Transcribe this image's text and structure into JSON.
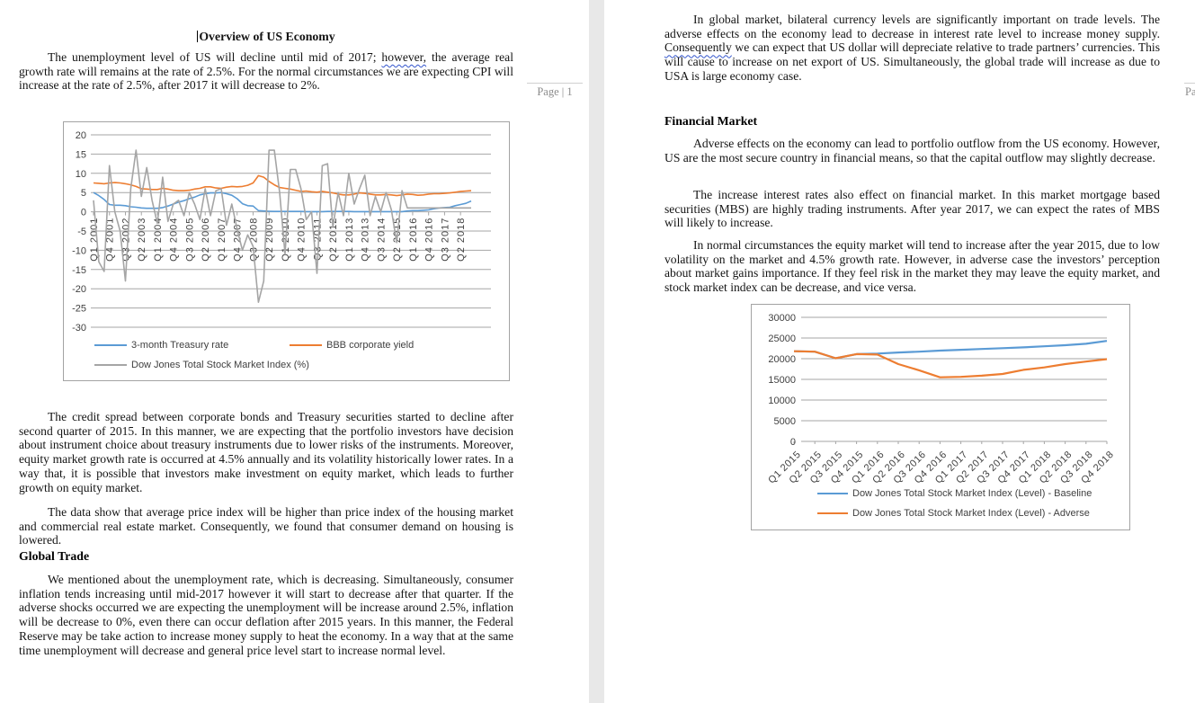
{
  "document": {
    "page1": {
      "title": "Overview of US Economy",
      "paragraph1": {
        "pre": "The unemployment level of US will decline until mid of 2017; ",
        "marked": "however,",
        "post": " the average real growth rate will remains at the rate of 2.5%. For the normal circumstances we are expecting CPI will increase at the rate of 2.5%, after 2017 it will decrease to 2%."
      },
      "paragraph2": "The credit spread between corporate bonds and Treasury securities started to decline after second quarter of 2015. In this manner, we are expecting that the portfolio investors have decision about instrument choice about treasury instruments due to lower risks of the instruments. Moreover, equity market growth rate is occurred at 4.5% annually and its volatility historically lower rates. In a way that, it is possible that investors make investment on equity market, which leads to further growth on equity market.",
      "paragraph3": "The data show that average price index will be higher than price index of the housing market and commercial real estate market. Consequently, we found that consumer demand on housing is lowered.",
      "heading_global_trade": "Global Trade",
      "paragraph4": "We mentioned about the unemployment rate, which is decreasing. Simultaneously, consumer inflation tends increasing until mid-2017 however it will start to decrease after that quarter. If the adverse shocks occurred we are expecting the unemployment will be increase around 2.5%, inflation will be decrease to 0%, even there can occur deflation after 2015 years. In this manner, the Federal Reserve may be take action to increase money supply to heat the economy. In a way that at the same time unemployment will decrease and general price level start to increase normal level.",
      "footer": "Page | 1"
    },
    "page2": {
      "paragraph1": {
        "pre": "In global market, bilateral currency levels are significantly important on trade levels. The adverse effects on the economy lead to decrease in interest rate level to increase money supply. ",
        "marked": "Consequently",
        "post": " we can expect that US dollar will depreciate relative to trade partners’ currencies. This will cause to increase on net export of US. Simultaneously, the global trade will increase as due to USA is large economy case."
      },
      "heading_financial_market": "Financial Market",
      "paragraph2": "Adverse effects on the economy can lead to portfolio outflow from the US economy. However, US are the most secure country in financial means, so that the capital outflow may slightly decrease.",
      "paragraph3": "The increase interest rates also effect on financial market. In this market mortgage based securities (MBS) are highly trading instruments. After year 2017, we can expect the rates of MBS will likely to increase.",
      "paragraph4": "In normal circumstances the equity market will tend to increase after the year 2015, due to low volatility on the market and 4.5% growth rate. However, in adverse case the investors’ perception about market gains importance. If they feel risk in the market they may leave the equity market, and stock market index can be decrease, and vice versa.",
      "footer_partial": "Pa"
    }
  },
  "chart_data": [
    {
      "type": "line",
      "title": "",
      "ylim": [
        -30,
        20
      ],
      "ystep": 5,
      "grid": true,
      "legend_position": "bottom",
      "tick_every": 3,
      "tick_labels": [
        "Q1 2001",
        "Q4 2001",
        "Q3 2002",
        "Q2 2003",
        "Q1 2004",
        "Q4 2004",
        "Q3 2005",
        "Q2 2006",
        "Q1 2007",
        "Q4 2007",
        "Q3 2008",
        "Q2 2009",
        "Q1 2010",
        "Q4 2010",
        "Q3 2011",
        "Q2 2012",
        "Q1 2013",
        "Q4 2013",
        "Q3 2014",
        "Q2 2015",
        "Q1 2016",
        "Q4 2016",
        "Q3 2017",
        "Q2 2018"
      ],
      "series": [
        {
          "name": "3-month Treasury rate",
          "color": "#5B9BD5",
          "values": [
            5.0,
            4.2,
            3.2,
            1.9,
            1.7,
            1.7,
            1.6,
            1.3,
            1.2,
            1.0,
            0.9,
            0.9,
            0.9,
            1.1,
            1.5,
            2.0,
            2.5,
            2.9,
            3.4,
            3.8,
            4.4,
            4.7,
            4.9,
            4.9,
            5.0,
            4.7,
            4.3,
            3.4,
            2.1,
            1.6,
            1.5,
            0.3,
            0.2,
            0.15,
            0.1,
            0.1,
            0.1,
            0.1,
            0.1,
            0.1,
            0.05,
            0.05,
            0.05,
            0.05,
            0.1,
            0.1,
            0.1,
            0.1,
            0.1,
            0.05,
            0.05,
            0.05,
            0.05,
            0.05,
            0.05,
            0.05,
            0.05,
            0.05,
            0.05,
            0.2,
            0.3,
            0.3,
            0.4,
            0.5,
            0.8,
            1.0,
            1.1,
            1.2,
            1.6,
            1.9,
            2.2,
            2.8
          ]
        },
        {
          "name": "BBB corporate yield",
          "color": "#ED7D31",
          "values": [
            7.5,
            7.4,
            7.3,
            7.5,
            7.6,
            7.5,
            7.3,
            7.0,
            6.6,
            6.0,
            5.9,
            5.8,
            5.8,
            6.1,
            5.9,
            5.6,
            5.5,
            5.5,
            5.6,
            5.9,
            6.1,
            6.5,
            6.5,
            6.2,
            6.1,
            6.4,
            6.6,
            6.5,
            6.6,
            6.9,
            7.5,
            9.4,
            9.0,
            7.9,
            7.0,
            6.3,
            6.1,
            5.9,
            5.6,
            5.3,
            5.4,
            5.2,
            5.1,
            5.3,
            5.1,
            4.9,
            4.6,
            4.4,
            4.4,
            4.6,
            4.9,
            4.8,
            4.6,
            4.4,
            4.4,
            4.5,
            4.4,
            4.2,
            4.4,
            4.6,
            4.5,
            4.3,
            4.4,
            4.6,
            4.7,
            4.7,
            4.8,
            4.9,
            5.1,
            5.3,
            5.4,
            5.5
          ]
        },
        {
          "name": "Dow Jones Total Stock Market Index (%)",
          "color": "#A5A5A5",
          "values": [
            3,
            -13,
            -15.5,
            12,
            0,
            -5,
            -18,
            6,
            16,
            4,
            11.5,
            3,
            -3,
            9,
            -2.5,
            2,
            3,
            -1,
            5,
            2,
            -2,
            6,
            -1,
            5.5,
            6,
            -3.5,
            2,
            -4.5,
            -10,
            -6,
            -9,
            -23.5,
            -18,
            16,
            16,
            5,
            -11,
            11,
            11,
            6,
            -2,
            0,
            -16,
            12,
            12.5,
            -4,
            5,
            -1,
            10,
            2,
            6,
            9.5,
            -1,
            4,
            0,
            5,
            0.5,
            -8,
            5.5,
            1,
            1,
            1,
            1,
            1,
            1,
            1,
            1,
            1,
            1,
            1,
            1,
            1
          ]
        }
      ]
    },
    {
      "type": "line",
      "title": "",
      "ylim": [
        0,
        30000
      ],
      "ystep": 5000,
      "grid": true,
      "legend_position": "bottom",
      "categories": [
        "Q1 2015",
        "Q2 2015",
        "Q3 2015",
        "Q4 2015",
        "Q1 2016",
        "Q2 2016",
        "Q3 2016",
        "Q4 2016",
        "Q1 2017",
        "Q2 2017",
        "Q3 2017",
        "Q4 2017",
        "Q1 2018",
        "Q2 2018",
        "Q3 2018",
        "Q4 2018"
      ],
      "series": [
        {
          "name": "Dow Jones Total Stock Market Index (Level) - Baseline",
          "color": "#5B9BD5",
          "values": [
            21800,
            21700,
            20100,
            21100,
            21250,
            21500,
            21700,
            21950,
            22150,
            22350,
            22550,
            22750,
            23000,
            23250,
            23600,
            24300
          ]
        },
        {
          "name": "Dow Jones Total Stock Market Index (Level) - Adverse",
          "color": "#ED7D31",
          "values": [
            21800,
            21700,
            20100,
            21100,
            21000,
            18700,
            17200,
            15500,
            15600,
            15900,
            16300,
            17300,
            17900,
            18700,
            19300,
            19900
          ]
        }
      ]
    }
  ],
  "colors": {
    "baseline_blue": "#5B9BD5",
    "adverse_orange": "#ED7D31",
    "dow_gray": "#A5A5A5",
    "page_gap": "#e8e8e8",
    "footer_text": "#8c8c8c",
    "grammar_squiggle": "#3355cc"
  }
}
